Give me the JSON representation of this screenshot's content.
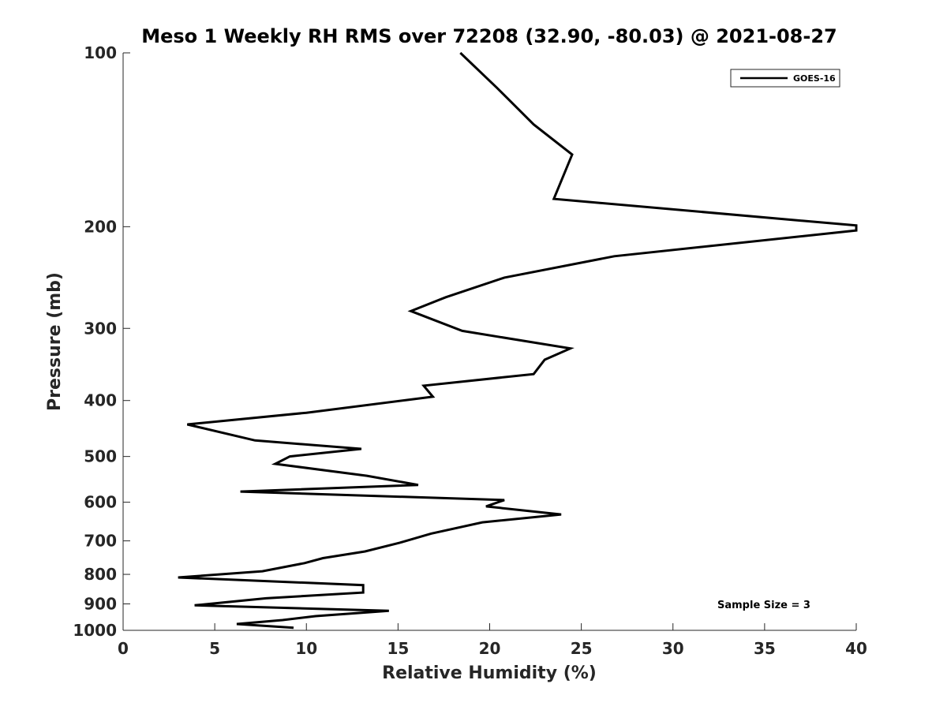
{
  "chart_data": {
    "type": "line",
    "title": "Meso 1 Weekly RH RMS over 72208 (32.90, -80.03) @ 2021-08-27",
    "xlabel": "Relative Humidity (%)",
    "ylabel": "Pressure (mb)",
    "xlim": [
      0,
      40
    ],
    "ylim": [
      100,
      1000
    ],
    "yscale": "log",
    "y_reversed": true,
    "grid": false,
    "legend_position": "top-right",
    "x_ticks": [
      0,
      5,
      10,
      15,
      20,
      25,
      30,
      35,
      40
    ],
    "y_ticks": [
      100,
      200,
      300,
      400,
      500,
      600,
      700,
      800,
      900,
      1000
    ],
    "annotation": "Sample Size = 3",
    "series": [
      {
        "name": "GOES-16",
        "color": "#000000",
        "x": [
          18.4,
          20.4,
          22.4,
          24.5,
          23.5,
          40.0,
          40.0,
          26.8,
          20.8,
          17.6,
          15.7,
          18.5,
          24.4,
          23.0,
          22.4,
          16.4,
          16.9,
          10.0,
          3.5,
          7.2,
          13.0,
          9.1,
          8.3,
          13.3,
          16.1,
          6.4,
          20.8,
          19.8,
          23.9,
          19.6,
          16.8,
          15.1,
          13.2,
          10.9,
          9.9,
          7.6,
          3.0,
          13.1,
          13.1,
          7.8,
          3.9,
          14.5,
          10.5,
          8.7,
          6.2,
          9.3
        ],
        "y": [
          100,
          115,
          133,
          150,
          179,
          199,
          203,
          225,
          245,
          265,
          280,
          303,
          325,
          340,
          360,
          377,
          394,
          420,
          440,
          469,
          485,
          500,
          515,
          540,
          560,
          575,
          595,
          610,
          630,
          650,
          680,
          705,
          730,
          750,
          765,
          790,
          810,
          835,
          860,
          880,
          905,
          925,
          945,
          960,
          975,
          990
        ]
      }
    ]
  }
}
